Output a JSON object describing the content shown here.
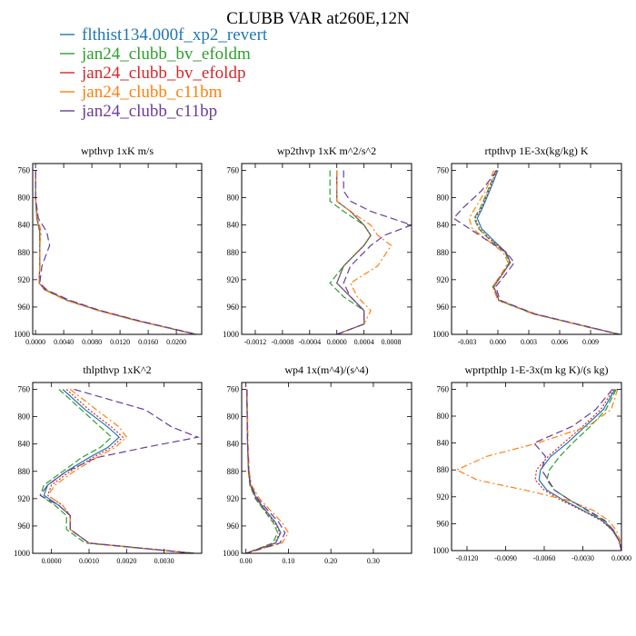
{
  "figure": {
    "title": "CLUBB VAR at260E,12N",
    "legend": [
      {
        "name": "flthist134.000f_xp2_revert",
        "color": "#1f77b4",
        "dash": ""
      },
      {
        "name": "jan24_clubb_bv_efoldm",
        "color": "#2ca02c",
        "dash": "7 3"
      },
      {
        "name": "jan24_clubb_bv_efoldp",
        "color": "#d62728",
        "dash": "2 2"
      },
      {
        "name": "jan24_clubb_c11bm",
        "color": "#ff7f0e",
        "dash": "7 3 2 3"
      },
      {
        "name": "jan24_clubb_c11bp",
        "color": "#6a3d9a",
        "dash": "8 4"
      }
    ]
  },
  "chart_data": [
    {
      "type": "line",
      "title": "wpthvp   1xK m/s",
      "ylim": [
        1000,
        750
      ],
      "yticks": [
        760,
        800,
        840,
        880,
        920,
        960,
        1000
      ],
      "xlim": [
        -0.0004,
        0.0236
      ],
      "xticks": [
        0.0,
        0.004,
        0.008,
        0.012,
        0.016,
        0.02
      ],
      "xticklabels": [
        "0.0000",
        "0.0040",
        "0.0080",
        "0.0120",
        "0.0160",
        "0.0200"
      ],
      "y": [
        760,
        800,
        830,
        850,
        870,
        900,
        925,
        935,
        950,
        965,
        980,
        1000
      ],
      "series": [
        {
          "values": [
            0.0,
            0.0,
            0.0002,
            0.0006,
            0.0006,
            0.0006,
            0.0005,
            0.0014,
            0.0045,
            0.009,
            0.0145,
            0.0228
          ]
        },
        {
          "values": [
            0.0,
            0.0,
            0.0002,
            0.0006,
            0.0006,
            0.0006,
            0.0005,
            0.0013,
            0.0044,
            0.0089,
            0.0144,
            0.0227
          ]
        },
        {
          "values": [
            0.0,
            0.0,
            0.0002,
            0.0006,
            0.0006,
            0.0006,
            0.0005,
            0.0014,
            0.0045,
            0.009,
            0.0145,
            0.0228
          ]
        },
        {
          "values": [
            0.0,
            0.0,
            0.0003,
            0.0008,
            0.0006,
            0.0006,
            0.0005,
            0.0013,
            0.0043,
            0.0088,
            0.0143,
            0.0228
          ]
        },
        {
          "values": [
            0.0,
            0.0,
            0.0004,
            0.0016,
            0.002,
            0.0009,
            0.0006,
            0.0016,
            0.0048,
            0.0092,
            0.0147,
            0.0229
          ]
        }
      ]
    },
    {
      "type": "line",
      "title": "wp2thvp   1xK m^2/s^2",
      "ylim": [
        1000,
        750
      ],
      "yticks": [
        760,
        800,
        840,
        880,
        920,
        960,
        1000
      ],
      "xlim": [
        -0.0014,
        0.0011
      ],
      "xticks": [
        -0.0012,
        -0.0008,
        -0.0004,
        0.0,
        0.0004,
        0.0008
      ],
      "xticklabels": [
        "-0.0012",
        "-0.0008",
        "-0.0004",
        "0.0000",
        "0.0004",
        "0.0008"
      ],
      "y": [
        760,
        790,
        805,
        820,
        840,
        855,
        870,
        900,
        925,
        945,
        965,
        985,
        1000
      ],
      "series": [
        {
          "values": [
            0.0,
            0.0,
            0.0,
            0.0002,
            0.0004,
            0.0005,
            0.0004,
            0.0001,
            0.0,
            0.0002,
            0.0004,
            0.0004,
            0.0
          ]
        },
        {
          "values": [
            -0.0001,
            -0.0001,
            -0.0001,
            0.0001,
            0.0004,
            0.0005,
            0.0004,
            0.0001,
            -0.0001,
            0.0001,
            0.0004,
            0.0004,
            0.0
          ]
        },
        {
          "values": [
            0.0,
            0.0,
            0.0,
            0.0002,
            0.0004,
            0.0005,
            0.0004,
            0.0001,
            0.0,
            0.0002,
            0.0004,
            0.0004,
            0.0
          ]
        },
        {
          "values": [
            0.0,
            0.0,
            0.0,
            0.0002,
            0.0005,
            0.0006,
            0.0008,
            0.0006,
            0.0002,
            0.0003,
            0.0005,
            0.0004,
            0.0
          ]
        },
        {
          "values": [
            0.0001,
            0.0001,
            0.0002,
            0.0005,
            0.0011,
            0.0007,
            0.0005,
            0.0002,
            0.0001,
            0.0002,
            0.0004,
            0.0004,
            0.0
          ]
        }
      ]
    },
    {
      "type": "line",
      "title": "rtpthvp   1E-3x(kg/kg) K",
      "ylim": [
        1000,
        750
      ],
      "yticks": [
        760,
        800,
        840,
        880,
        920,
        960,
        1000
      ],
      "xlim": [
        -0.0045,
        0.012
      ],
      "xticks": [
        -0.003,
        0.0,
        0.003,
        0.006,
        0.009
      ],
      "xticklabels": [
        "-0.003",
        "0.000",
        "0.003",
        "0.006",
        "0.009"
      ],
      "y": [
        760,
        790,
        815,
        830,
        845,
        860,
        880,
        895,
        915,
        930,
        950,
        970,
        990,
        1000
      ],
      "series": [
        {
          "values": [
            0.0,
            -0.0008,
            -0.0015,
            -0.002,
            -0.0016,
            -0.0006,
            0.0008,
            0.0012,
            0.0003,
            -0.0004,
            0.0001,
            0.0035,
            0.009,
            0.0118
          ]
        },
        {
          "values": [
            -0.0002,
            -0.001,
            -0.0017,
            -0.0023,
            -0.0019,
            -0.0009,
            0.0007,
            0.0011,
            0.0002,
            -0.0005,
            0.0,
            0.0034,
            0.0089,
            0.0118
          ]
        },
        {
          "values": [
            -0.0001,
            -0.0009,
            -0.0016,
            -0.0022,
            -0.0018,
            -0.0008,
            0.0008,
            0.0012,
            0.0003,
            -0.0004,
            0.0001,
            0.0035,
            0.009,
            0.0118
          ]
        },
        {
          "values": [
            -0.0004,
            -0.0012,
            -0.0022,
            -0.0028,
            -0.0025,
            -0.0012,
            0.0005,
            0.001,
            0.0002,
            -0.0005,
            0.0,
            0.0034,
            0.009,
            0.0118
          ]
        },
        {
          "values": [
            -0.0001,
            -0.0016,
            -0.0034,
            -0.0043,
            -0.0028,
            -0.0013,
            0.0008,
            0.0016,
            0.0006,
            -0.0002,
            0.0002,
            0.0036,
            0.0091,
            0.0118
          ]
        }
      ]
    },
    {
      "type": "line",
      "title": "thlpthvp   1xK^2",
      "ylim": [
        1000,
        750
      ],
      "yticks": [
        760,
        800,
        840,
        880,
        920,
        960,
        1000
      ],
      "xlim": [
        -0.0005,
        0.004
      ],
      "xticks": [
        0.0,
        0.001,
        0.002,
        0.003
      ],
      "xticklabels": [
        "0.0000",
        "0.0010",
        "0.0020",
        "0.0030"
      ],
      "y": [
        760,
        790,
        815,
        830,
        845,
        860,
        880,
        900,
        915,
        930,
        945,
        965,
        985,
        1000
      ],
      "series": [
        {
          "values": [
            0.0003,
            0.0009,
            0.0015,
            0.0018,
            0.0015,
            0.001,
            0.0004,
            -0.0001,
            -0.0002,
            0.0002,
            0.0005,
            0.0005,
            0.001,
            0.0038
          ]
        },
        {
          "values": [
            0.0002,
            0.0008,
            0.0013,
            0.0016,
            0.0013,
            0.0008,
            0.0003,
            -0.0002,
            -0.0003,
            0.0001,
            0.0004,
            0.0004,
            0.0009,
            0.0038
          ]
        },
        {
          "values": [
            0.0004,
            0.001,
            0.0016,
            0.0019,
            0.0016,
            0.0011,
            0.0005,
            0.0,
            -0.0001,
            0.0003,
            0.0005,
            0.0005,
            0.001,
            0.0038
          ]
        },
        {
          "values": [
            0.0005,
            0.0012,
            0.0018,
            0.002,
            0.0017,
            0.0012,
            0.0006,
            0.0001,
            -0.0001,
            0.0003,
            0.0005,
            0.0005,
            0.001,
            0.0038
          ]
        },
        {
          "values": [
            0.0006,
            0.0025,
            0.0032,
            0.0039,
            0.0025,
            0.0012,
            0.0004,
            -0.0001,
            -0.0003,
            0.0002,
            0.0005,
            0.0005,
            0.001,
            0.0038
          ]
        }
      ]
    },
    {
      "type": "line",
      "title": "wp4   1x(m^4)/(s^4)",
      "ylim": [
        1000,
        750
      ],
      "yticks": [
        760,
        800,
        840,
        880,
        920,
        960,
        1000
      ],
      "xlim": [
        -0.01,
        0.39
      ],
      "xticks": [
        0.0,
        0.1,
        0.2,
        0.3
      ],
      "xticklabels": [
        "0.00",
        "0.10",
        "0.20",
        "0.30"
      ],
      "y": [
        760,
        800,
        840,
        880,
        900,
        920,
        940,
        955,
        970,
        985,
        1000
      ],
      "series": [
        {
          "values": [
            0.002,
            0.003,
            0.004,
            0.006,
            0.01,
            0.025,
            0.05,
            0.07,
            0.082,
            0.07,
            0.0
          ]
        },
        {
          "values": [
            0.002,
            0.003,
            0.004,
            0.006,
            0.009,
            0.022,
            0.046,
            0.064,
            0.075,
            0.063,
            0.0
          ]
        },
        {
          "values": [
            0.002,
            0.003,
            0.004,
            0.006,
            0.01,
            0.024,
            0.048,
            0.068,
            0.08,
            0.068,
            0.0
          ]
        },
        {
          "values": [
            0.003,
            0.004,
            0.005,
            0.008,
            0.013,
            0.032,
            0.062,
            0.085,
            0.1,
            0.085,
            0.0
          ]
        },
        {
          "values": [
            0.002,
            0.003,
            0.004,
            0.007,
            0.011,
            0.028,
            0.056,
            0.078,
            0.092,
            0.08,
            0.0
          ]
        }
      ]
    },
    {
      "type": "line",
      "title": "wprtpthlp   1-E-3x(m kg K)/(s kg)",
      "ylim": [
        1000,
        750
      ],
      "yticks": [
        760,
        800,
        840,
        880,
        920,
        960,
        1000
      ],
      "xlim": [
        -0.0132,
        0.0
      ],
      "xticks": [
        -0.012,
        -0.009,
        -0.006,
        -0.003,
        0.0
      ],
      "xticklabels": [
        "-0.0120",
        "-0.0090",
        "-0.0060",
        "-0.0030",
        "0.0000"
      ],
      "y": [
        760,
        790,
        815,
        840,
        860,
        880,
        895,
        910,
        925,
        940,
        955,
        970,
        985,
        1000
      ],
      "series": [
        {
          "values": [
            -0.0005,
            -0.0014,
            -0.0028,
            -0.0042,
            -0.0055,
            -0.0063,
            -0.0064,
            -0.0058,
            -0.0045,
            -0.003,
            -0.0015,
            -0.0007,
            -0.0002,
            0.0
          ]
        },
        {
          "values": [
            -0.0004,
            -0.0012,
            -0.0024,
            -0.0038,
            -0.0048,
            -0.0056,
            -0.0058,
            -0.0052,
            -0.004,
            -0.0027,
            -0.0014,
            -0.0006,
            -0.0002,
            0.0
          ]
        },
        {
          "values": [
            -0.0006,
            -0.0016,
            -0.003,
            -0.0045,
            -0.0057,
            -0.0066,
            -0.0067,
            -0.006,
            -0.0047,
            -0.0031,
            -0.0016,
            -0.0007,
            -0.0002,
            0.0
          ]
        },
        {
          "values": [
            -0.0003,
            -0.0008,
            -0.0026,
            -0.0065,
            -0.0105,
            -0.0128,
            -0.0112,
            -0.0075,
            -0.0042,
            -0.0022,
            -0.001,
            -0.0004,
            -0.0001,
            0.0
          ]
        },
        {
          "values": [
            -0.0007,
            -0.002,
            -0.0038,
            -0.0068,
            -0.0059,
            -0.0062,
            -0.0057,
            -0.0052,
            -0.004,
            -0.0026,
            -0.0013,
            -0.0006,
            -0.0002,
            0.0
          ]
        }
      ]
    }
  ]
}
